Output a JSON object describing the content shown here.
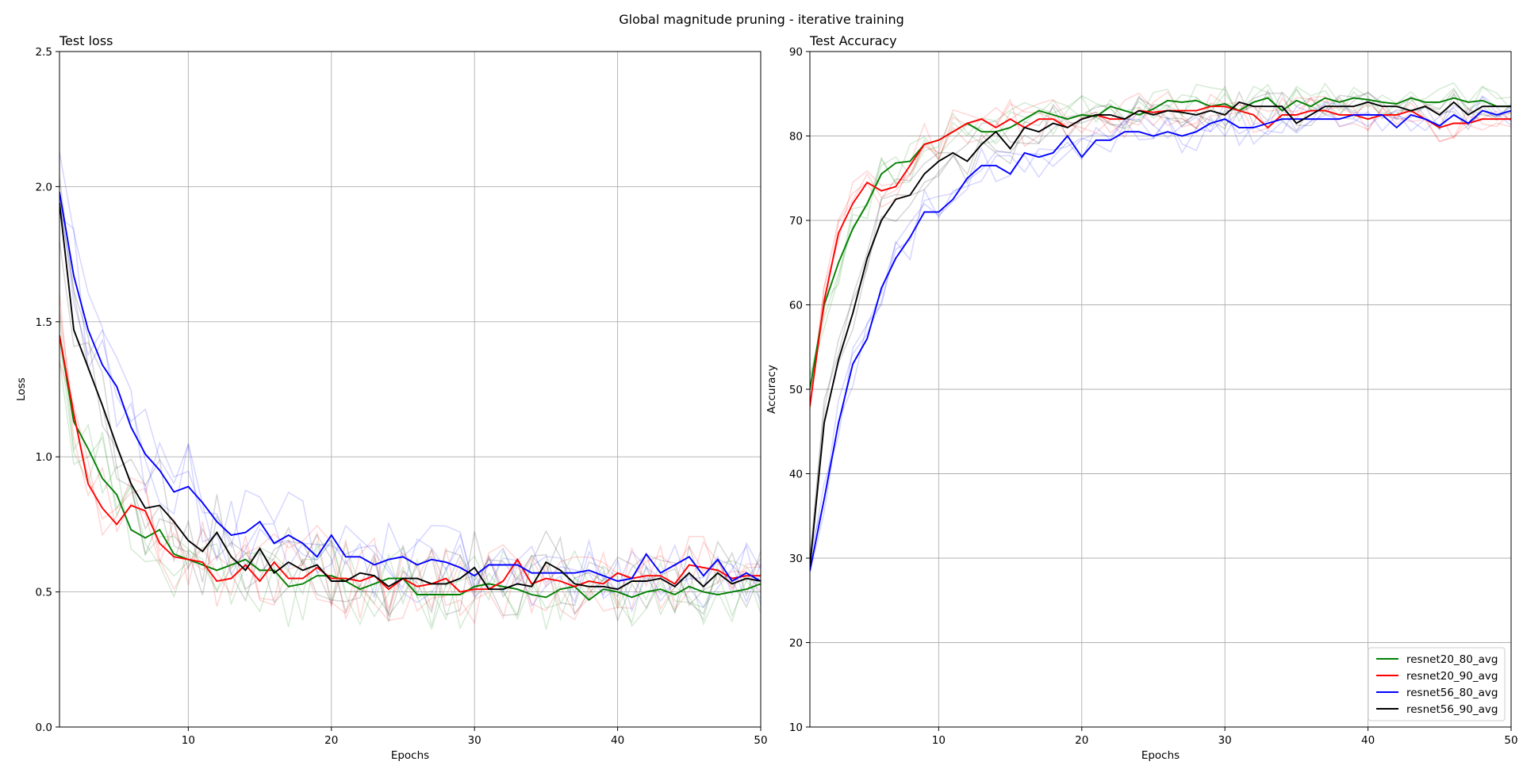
{
  "figure": {
    "title": "Global magnitude pruning - iterative training"
  },
  "chart_data": [
    {
      "type": "line",
      "title": "Test loss",
      "xlabel": "Epochs",
      "ylabel": "Loss",
      "xlim": [
        1,
        50
      ],
      "ylim": [
        0,
        2.5
      ],
      "xticks": [
        10,
        20,
        30,
        40,
        50
      ],
      "yticks": [
        0.0,
        0.5,
        1.0,
        1.5,
        2.0,
        2.5
      ],
      "ytick_labels": [
        "0.0",
        "0.5",
        "1.0",
        "1.5",
        "2.0",
        "2.5"
      ],
      "grid": true,
      "x": [
        1,
        2,
        3,
        4,
        5,
        6,
        7,
        8,
        9,
        10,
        11,
        12,
        13,
        14,
        15,
        16,
        17,
        18,
        19,
        20,
        21,
        22,
        23,
        24,
        25,
        26,
        27,
        28,
        29,
        30,
        31,
        32,
        33,
        34,
        35,
        36,
        37,
        38,
        39,
        40,
        41,
        42,
        43,
        44,
        45,
        46,
        47,
        48,
        49,
        50
      ],
      "series": [
        {
          "name": "resnet20_80_avg",
          "color": "#008000",
          "values": [
            1.45,
            1.13,
            1.03,
            0.92,
            0.86,
            0.73,
            0.7,
            0.73,
            0.64,
            0.62,
            0.6,
            0.58,
            0.6,
            0.62,
            0.58,
            0.58,
            0.52,
            0.53,
            0.56,
            0.56,
            0.54,
            0.51,
            0.53,
            0.55,
            0.55,
            0.49,
            0.49,
            0.49,
            0.49,
            0.52,
            0.53,
            0.52,
            0.51,
            0.49,
            0.48,
            0.51,
            0.52,
            0.47,
            0.51,
            0.5,
            0.48,
            0.5,
            0.51,
            0.49,
            0.52,
            0.5,
            0.49,
            0.5,
            0.51,
            0.53
          ]
        },
        {
          "name": "resnet20_90_avg",
          "color": "#ff0000",
          "values": [
            1.45,
            1.16,
            0.9,
            0.81,
            0.75,
            0.82,
            0.8,
            0.68,
            0.63,
            0.62,
            0.61,
            0.54,
            0.55,
            0.6,
            0.54,
            0.61,
            0.55,
            0.55,
            0.59,
            0.55,
            0.55,
            0.54,
            0.56,
            0.51,
            0.55,
            0.52,
            0.53,
            0.55,
            0.5,
            0.51,
            0.51,
            0.54,
            0.62,
            0.53,
            0.55,
            0.54,
            0.52,
            0.54,
            0.53,
            0.57,
            0.55,
            0.56,
            0.56,
            0.53,
            0.6,
            0.59,
            0.58,
            0.55,
            0.56,
            0.56
          ]
        },
        {
          "name": "resnet56_80_avg",
          "color": "#0000ff",
          "values": [
            1.98,
            1.67,
            1.47,
            1.34,
            1.26,
            1.11,
            1.01,
            0.95,
            0.87,
            0.89,
            0.83,
            0.76,
            0.71,
            0.72,
            0.76,
            0.68,
            0.71,
            0.68,
            0.63,
            0.71,
            0.63,
            0.63,
            0.6,
            0.62,
            0.63,
            0.6,
            0.62,
            0.61,
            0.59,
            0.56,
            0.6,
            0.6,
            0.6,
            0.57,
            0.57,
            0.57,
            0.57,
            0.58,
            0.56,
            0.54,
            0.55,
            0.64,
            0.57,
            0.6,
            0.63,
            0.56,
            0.62,
            0.54,
            0.57,
            0.54
          ]
        },
        {
          "name": "resnet56_90_avg",
          "color": "#000000",
          "values": [
            1.94,
            1.47,
            1.33,
            1.19,
            1.04,
            0.9,
            0.81,
            0.82,
            0.76,
            0.69,
            0.65,
            0.72,
            0.63,
            0.58,
            0.66,
            0.57,
            0.61,
            0.58,
            0.6,
            0.54,
            0.54,
            0.57,
            0.56,
            0.52,
            0.55,
            0.55,
            0.53,
            0.53,
            0.55,
            0.59,
            0.51,
            0.51,
            0.53,
            0.52,
            0.61,
            0.58,
            0.53,
            0.52,
            0.52,
            0.51,
            0.54,
            0.54,
            0.55,
            0.52,
            0.57,
            0.52,
            0.57,
            0.53,
            0.55,
            0.54
          ]
        }
      ]
    },
    {
      "type": "line",
      "title": "Test Accuracy",
      "xlabel": "Epochs",
      "ylabel": "Accuracy",
      "xlim": [
        1,
        50
      ],
      "ylim": [
        10,
        90
      ],
      "xticks": [
        10,
        20,
        30,
        40,
        50
      ],
      "yticks": [
        10,
        20,
        30,
        40,
        50,
        60,
        70,
        80,
        90
      ],
      "ytick_labels": [
        "10",
        "20",
        "30",
        "40",
        "50",
        "60",
        "70",
        "80",
        "90"
      ],
      "grid": true,
      "legend": "lower-right",
      "x": [
        1,
        2,
        3,
        4,
        5,
        6,
        7,
        8,
        9,
        10,
        11,
        12,
        13,
        14,
        15,
        16,
        17,
        18,
        19,
        20,
        21,
        22,
        23,
        24,
        25,
        26,
        27,
        28,
        29,
        30,
        31,
        32,
        33,
        34,
        35,
        36,
        37,
        38,
        39,
        40,
        41,
        42,
        43,
        44,
        45,
        46,
        47,
        48,
        49,
        50
      ],
      "series": [
        {
          "name": "resnet20_80_avg",
          "color": "#008000",
          "values": [
            50,
            60,
            65,
            69,
            72,
            75.5,
            76.8,
            77,
            79,
            79.5,
            80.5,
            81.5,
            80.5,
            80.5,
            81,
            82,
            83,
            82.5,
            82,
            82.5,
            82.3,
            83.5,
            83,
            82.5,
            83.2,
            84.2,
            84,
            84.2,
            83.5,
            83.8,
            83,
            84,
            84.5,
            83,
            84.2,
            83.5,
            84.5,
            84,
            84.5,
            84.3,
            84,
            83.8,
            84.5,
            84,
            84,
            84.5,
            84,
            84.2,
            83.5,
            83.5
          ]
        },
        {
          "name": "resnet20_90_avg",
          "color": "#ff0000",
          "values": [
            48,
            60.5,
            68.5,
            72,
            74.5,
            73.5,
            74,
            76.5,
            79,
            79.5,
            80.5,
            81.5,
            82,
            81,
            82,
            81,
            82,
            82,
            81,
            82,
            82.5,
            82,
            82,
            83,
            82.8,
            83,
            83,
            83,
            83.5,
            83.5,
            83,
            82.5,
            81,
            82.5,
            82.5,
            83,
            83,
            82.5,
            82.5,
            82,
            82.5,
            82.5,
            83,
            82,
            81,
            81.5,
            81.5,
            82,
            82,
            82
          ]
        },
        {
          "name": "resnet56_80_avg",
          "color": "#0000ff",
          "values": [
            28.5,
            37,
            46,
            53,
            56,
            62,
            65.5,
            68,
            71,
            71,
            72.5,
            75,
            76.5,
            76.5,
            75.5,
            78,
            77.5,
            78,
            80,
            77.5,
            79.5,
            79.5,
            80.5,
            80.5,
            80,
            80.5,
            80,
            80.5,
            81.5,
            82,
            81,
            81,
            81.5,
            82,
            82,
            82,
            82,
            82,
            82.5,
            82.5,
            82.5,
            81,
            82.5,
            82,
            81.2,
            82.5,
            81.5,
            83,
            82.5,
            83
          ]
        },
        {
          "name": "resnet56_90_avg",
          "color": "#000000",
          "values": [
            29,
            46,
            53.5,
            59,
            65.5,
            70,
            72.5,
            73,
            75.5,
            77,
            78,
            77,
            79,
            80.5,
            78.5,
            81,
            80.5,
            81.5,
            81,
            82,
            82.5,
            82.5,
            82,
            83,
            82.5,
            83,
            82.8,
            82.5,
            83,
            82.5,
            84,
            83.5,
            83.5,
            83.5,
            81.5,
            82.5,
            83.5,
            83.5,
            83.5,
            84,
            83.5,
            83.5,
            83,
            83.5,
            82.5,
            84,
            82.5,
            83.5,
            83.5,
            83.5
          ]
        }
      ]
    }
  ]
}
